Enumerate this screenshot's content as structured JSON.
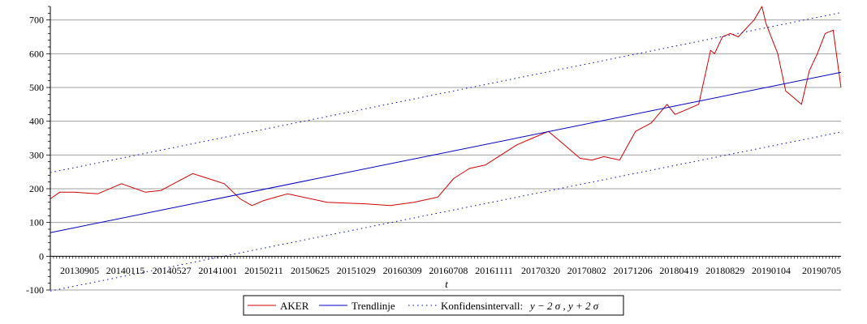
{
  "chart_data": {
    "type": "line",
    "title": "",
    "xlabel": "t",
    "ylabel": "",
    "ylim": [
      -100,
      740
    ],
    "yticks": [
      -100,
      0,
      100,
      200,
      300,
      400,
      500,
      600,
      700
    ],
    "x_tick_labels": [
      "20130905",
      "20140115",
      "20140527",
      "20141001",
      "20150211",
      "20150625",
      "20151029",
      "20160309",
      "20160708",
      "20161111",
      "20170320",
      "20170802",
      "20171206",
      "20180419",
      "20180829",
      "20190104",
      "20190705"
    ],
    "grid": "horizontal",
    "legend_placement": "bottom-center",
    "series": [
      {
        "name": "AKER",
        "color": "#d40000",
        "style": "solid",
        "x": [
          0,
          0.012,
          0.03,
          0.06,
          0.09,
          0.12,
          0.14,
          0.16,
          0.18,
          0.2,
          0.22,
          0.24,
          0.255,
          0.27,
          0.285,
          0.3,
          0.35,
          0.4,
          0.43,
          0.46,
          0.49,
          0.51,
          0.53,
          0.55,
          0.57,
          0.59,
          0.61,
          0.63,
          0.65,
          0.67,
          0.685,
          0.7,
          0.72,
          0.74,
          0.76,
          0.78,
          0.79,
          0.8,
          0.82,
          0.835,
          0.84,
          0.85,
          0.86,
          0.87,
          0.89,
          0.9,
          0.905,
          0.91,
          0.92,
          0.93,
          0.94,
          0.95,
          0.96,
          0.97,
          0.98,
          0.99,
          1.0
        ],
        "values": [
          170,
          190,
          190,
          185,
          215,
          190,
          195,
          220,
          245,
          230,
          215,
          170,
          150,
          165,
          175,
          185,
          160,
          155,
          150,
          160,
          175,
          230,
          260,
          270,
          300,
          330,
          350,
          370,
          330,
          290,
          285,
          295,
          285,
          370,
          395,
          450,
          420,
          430,
          450,
          610,
          600,
          650,
          660,
          650,
          700,
          740,
          690,
          660,
          600,
          490,
          470,
          450,
          550,
          600,
          660,
          670,
          500
        ]
      },
      {
        "name": "Trendlinje",
        "color": "#0000c8",
        "style": "solid",
        "x": [
          0,
          1
        ],
        "values": [
          70,
          545
        ]
      },
      {
        "name": "Konfidensintervall: y − 2σ, y + 2σ (upper)",
        "color": "#0000c8",
        "style": "dotted",
        "x": [
          0,
          1
        ],
        "values": [
          248,
          722
        ]
      },
      {
        "name": "Konfidensintervall: y − 2σ, y + 2σ (lower)",
        "color": "#0000c8",
        "style": "dotted",
        "x": [
          0,
          1
        ],
        "values": [
          -103,
          368
        ]
      }
    ],
    "legend": {
      "entries": [
        {
          "label": "AKER",
          "color": "#d40000",
          "style": "solid"
        },
        {
          "label": "Trendlinje",
          "color": "#0000c8",
          "style": "solid"
        },
        {
          "label": "Konfidensintervall:",
          "math": "y − 2 σ , y + 2 σ",
          "color": "#0000c8",
          "style": "dotted"
        }
      ]
    }
  }
}
